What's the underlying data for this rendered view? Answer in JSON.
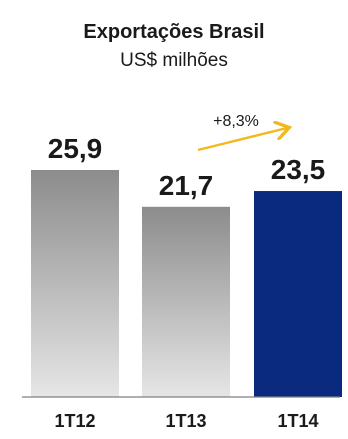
{
  "chart_data": {
    "type": "bar",
    "title": "Exportações Brasil",
    "subtitle": "US$ milhões",
    "categories": [
      "1T12",
      "1T13",
      "1T14"
    ],
    "values": [
      25.9,
      21.7,
      23.5
    ],
    "data_labels": [
      "25,9",
      "21,7",
      "23,5"
    ],
    "ylim": [
      0,
      25.9
    ],
    "grid": false,
    "bar_colors": [
      "#8c8c8c",
      "#8c8c8c",
      "#0a2a80"
    ],
    "bar_gradient_light": "#e6e6e6",
    "annotation": {
      "text": "+8,3%",
      "from_category": "1T13",
      "to_category": "1T14",
      "arrow_color": "#f2b81c"
    },
    "axis_color": "#7f7f7f"
  }
}
